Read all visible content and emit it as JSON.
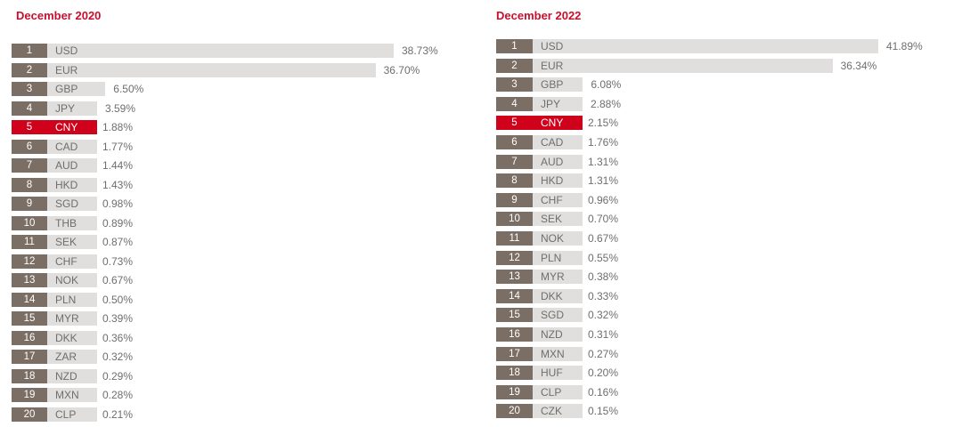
{
  "colors": {
    "title": "#c8102e",
    "rank_bg": "#7b6e65",
    "bar": "#e1dfdd",
    "highlight": "#d0021b",
    "text": "#6e6e6e"
  },
  "chart_data": [
    {
      "type": "bar",
      "orientation": "horizontal",
      "title": "December 2020",
      "highlight_category": "CNY",
      "categories": [
        "USD",
        "EUR",
        "GBP",
        "JPY",
        "CNY",
        "CAD",
        "AUD",
        "HKD",
        "SGD",
        "THB",
        "SEK",
        "CHF",
        "NOK",
        "PLN",
        "MYR",
        "DKK",
        "ZAR",
        "NZD",
        "MXN",
        "CLP"
      ],
      "ranks": [
        "1",
        "2",
        "3",
        "4",
        "5",
        "6",
        "7",
        "8",
        "9",
        "10",
        "11",
        "12",
        "13",
        "14",
        "15",
        "16",
        "17",
        "18",
        "19",
        "20"
      ],
      "values": [
        38.73,
        36.7,
        6.5,
        3.59,
        1.88,
        1.77,
        1.44,
        1.43,
        0.98,
        0.89,
        0.87,
        0.73,
        0.67,
        0.5,
        0.39,
        0.36,
        0.32,
        0.29,
        0.28,
        0.21
      ],
      "value_labels": [
        "38.73%",
        "36.70%",
        "6.50%",
        "3.59%",
        "1.88%",
        "1.77%",
        "1.44%",
        "1.43%",
        "0.98%",
        "0.89%",
        "0.87%",
        "0.73%",
        "0.67%",
        "0.50%",
        "0.39%",
        "0.36%",
        "0.32%",
        "0.29%",
        "0.28%",
        "0.21%"
      ]
    },
    {
      "type": "bar",
      "orientation": "horizontal",
      "title": "December 2022",
      "highlight_category": "CNY",
      "categories": [
        "USD",
        "EUR",
        "GBP",
        "JPY",
        "CNY",
        "CAD",
        "AUD",
        "HKD",
        "CHF",
        "SEK",
        "NOK",
        "PLN",
        "MYR",
        "DKK",
        "SGD",
        "NZD",
        "MXN",
        "HUF",
        "CLP",
        "CZK"
      ],
      "ranks": [
        "1",
        "2",
        "3",
        "4",
        "5",
        "6",
        "7",
        "8",
        "9",
        "10",
        "11",
        "12",
        "13",
        "14",
        "15",
        "16",
        "17",
        "18",
        "19",
        "20"
      ],
      "values": [
        41.89,
        36.34,
        6.08,
        2.88,
        2.15,
        1.76,
        1.31,
        1.31,
        0.96,
        0.7,
        0.67,
        0.55,
        0.38,
        0.33,
        0.32,
        0.31,
        0.27,
        0.2,
        0.16,
        0.15
      ],
      "value_labels": [
        "41.89%",
        "36.34%",
        "6.08%",
        "2.88%",
        "2.15%",
        "1.76%",
        "1.31%",
        "1.31%",
        "0.96%",
        "0.70%",
        "0.67%",
        "0.55%",
        "0.38%",
        "0.33%",
        "0.32%",
        "0.31%",
        "0.27%",
        "0.20%",
        "0.16%",
        "0.15%"
      ]
    }
  ]
}
